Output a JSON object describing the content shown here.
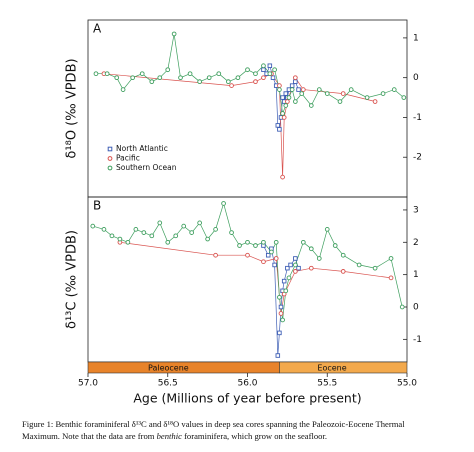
{
  "chart_data": [
    {
      "type": "scatter",
      "panel_label": "A",
      "ylabel": "δ¹⁸O (‰ VPDB)",
      "xlim": [
        57.0,
        55.0
      ],
      "ylim": [
        -3.0,
        1.45
      ],
      "yticks": [
        1,
        0,
        -1,
        -2
      ],
      "legend": "lower left",
      "series": [
        {
          "name": "North Atlantic",
          "color": "#3f5fb5",
          "marker": "square",
          "x": [
            55.9,
            55.88,
            55.86,
            55.84,
            55.82,
            55.81,
            55.8,
            55.79,
            55.78,
            55.77,
            55.76,
            55.75,
            55.74,
            55.72,
            55.7,
            55.68
          ],
          "values": [
            0.2,
            0.1,
            0.3,
            0.0,
            -0.2,
            -1.2,
            -1.3,
            -1.0,
            -0.5,
            -0.6,
            -0.4,
            -0.5,
            -0.3,
            -0.2,
            -0.1,
            -0.3
          ]
        },
        {
          "name": "Pacific",
          "color": "#d9534f",
          "marker": "circle",
          "x": [
            56.9,
            56.1,
            55.95,
            55.9,
            55.85,
            55.8,
            55.78,
            55.77,
            55.75,
            55.7,
            55.65,
            55.4,
            55.2
          ],
          "values": [
            0.1,
            -0.2,
            -0.1,
            0.0,
            0.1,
            -0.2,
            -2.5,
            -1.0,
            -0.6,
            0.0,
            -0.3,
            -0.4,
            -0.6
          ]
        },
        {
          "name": "Southern Ocean",
          "color": "#3f9f5f",
          "marker": "circle",
          "x": [
            56.95,
            56.88,
            56.82,
            56.78,
            56.72,
            56.66,
            56.6,
            56.55,
            56.5,
            56.46,
            56.42,
            56.36,
            56.3,
            56.24,
            56.18,
            56.12,
            56.06,
            56.0,
            55.95,
            55.9,
            55.86,
            55.83,
            55.8,
            55.78,
            55.76,
            55.74,
            55.72,
            55.7,
            55.66,
            55.6,
            55.55,
            55.5,
            55.42,
            55.35,
            55.25,
            55.15,
            55.08,
            55.02
          ],
          "values": [
            0.1,
            0.1,
            0.0,
            -0.3,
            0.0,
            0.1,
            -0.1,
            0.0,
            0.2,
            1.1,
            0.0,
            0.1,
            -0.1,
            0.0,
            0.1,
            -0.1,
            0.0,
            0.2,
            0.1,
            0.3,
            0.1,
            0.2,
            -0.3,
            -0.9,
            -0.7,
            -0.5,
            -0.3,
            -0.6,
            -0.4,
            -0.7,
            -0.3,
            -0.4,
            -0.6,
            -0.3,
            -0.5,
            -0.4,
            -0.3,
            -0.5
          ]
        }
      ]
    },
    {
      "type": "scatter",
      "panel_label": "B",
      "ylabel": "δ¹³C (‰ VPDB)",
      "xlabel": "Age (Millions of year before present)",
      "xlim": [
        57.0,
        55.0
      ],
      "xticks": [
        {
          "value": 57,
          "label": "57.0"
        },
        56.5,
        {
          "value": 56,
          "label": "56.0"
        },
        55.5,
        {
          "value": 55,
          "label": "55.0"
        }
      ],
      "ylim": [
        -1.7,
        3.4
      ],
      "yticks": [
        3,
        2,
        1,
        0,
        -1
      ],
      "epochs": [
        {
          "name": "Paleocene",
          "start": 57.0,
          "end": 55.8,
          "color": "#e8832a"
        },
        {
          "name": "Eocene",
          "start": 55.8,
          "end": 55.0,
          "color": "#f3a94c"
        }
      ],
      "series": [
        {
          "name": "North Atlantic",
          "color": "#3f5fb5",
          "marker": "square",
          "x": [
            55.9,
            55.87,
            55.85,
            55.83,
            55.81,
            55.8,
            55.79,
            55.78,
            55.77,
            55.75,
            55.73,
            55.7,
            55.68
          ],
          "values": [
            1.9,
            1.6,
            1.8,
            1.3,
            -1.5,
            -0.8,
            0.0,
            0.5,
            0.8,
            1.2,
            1.3,
            1.5,
            1.2
          ]
        },
        {
          "name": "Pacific",
          "color": "#d9534f",
          "marker": "circle",
          "x": [
            56.8,
            56.2,
            56.0,
            55.9,
            55.82,
            55.79,
            55.77,
            55.7,
            55.6,
            55.4,
            55.1
          ],
          "values": [
            2.0,
            1.6,
            1.6,
            1.4,
            1.5,
            -0.2,
            0.4,
            1.1,
            1.2,
            1.1,
            0.9
          ]
        },
        {
          "name": "Southern Ocean",
          "color": "#3f9f5f",
          "marker": "circle",
          "x": [
            56.97,
            56.9,
            56.85,
            56.8,
            56.75,
            56.7,
            56.65,
            56.6,
            56.55,
            56.5,
            56.45,
            56.4,
            56.35,
            56.3,
            56.25,
            56.2,
            56.15,
            56.1,
            56.05,
            56.0,
            55.95,
            55.9,
            55.85,
            55.82,
            55.8,
            55.78,
            55.76,
            55.74,
            55.7,
            55.65,
            55.6,
            55.55,
            55.5,
            55.45,
            55.4,
            55.3,
            55.2,
            55.1,
            55.03
          ],
          "values": [
            2.5,
            2.4,
            2.2,
            2.1,
            2.0,
            2.4,
            2.3,
            2.2,
            2.6,
            2.0,
            2.2,
            2.5,
            2.3,
            2.6,
            2.1,
            2.4,
            3.2,
            2.3,
            1.9,
            2.0,
            1.9,
            2.0,
            1.7,
            2.0,
            0.3,
            -0.4,
            0.5,
            0.9,
            1.3,
            2.0,
            1.8,
            1.5,
            2.4,
            1.9,
            1.6,
            1.3,
            1.2,
            1.5,
            0.0
          ]
        }
      ]
    }
  ],
  "caption": {
    "label": "Figure 1:",
    "line1": "Benthic foraminiferal δ¹³C and δ¹⁸O values in deep sea cores spanning the Paleozoic-Eocene Thermal",
    "line2_start": "Maximum.  Note that the data are from",
    "line2_italic": "benthic",
    "line2_end": "foraminifera, which grow on the seafloor."
  }
}
